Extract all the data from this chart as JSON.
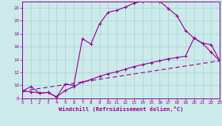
{
  "bg_color": "#cceaea",
  "grid_color": "#aad4d4",
  "line_color": "#990099",
  "xlabel": "Windchill (Refroidissement éolien,°C)",
  "xlim": [
    0,
    23
  ],
  "ylim": [
    8,
    23
  ],
  "xticks": [
    0,
    1,
    2,
    3,
    4,
    5,
    6,
    7,
    8,
    9,
    10,
    11,
    12,
    13,
    14,
    15,
    16,
    17,
    18,
    19,
    20,
    21,
    22,
    23
  ],
  "yticks": [
    8,
    10,
    12,
    14,
    16,
    18,
    20,
    22
  ],
  "line1_x": [
    0,
    1,
    2,
    3,
    4,
    5,
    6,
    7,
    8,
    9,
    10,
    11,
    12,
    13,
    14,
    15,
    16,
    17,
    18,
    19,
    20,
    21,
    22,
    23
  ],
  "line1_y": [
    9.1,
    9.8,
    8.8,
    8.9,
    8.2,
    10.2,
    10.0,
    17.2,
    16.4,
    19.5,
    21.3,
    21.6,
    22.1,
    22.7,
    23.0,
    23.1,
    23.0,
    21.9,
    20.8,
    18.5,
    17.3,
    16.5,
    15.1,
    13.8
  ],
  "line2_x": [
    0,
    1,
    2,
    3,
    4,
    5,
    6,
    7,
    8,
    9,
    10,
    11,
    12,
    13,
    14,
    15,
    16,
    17,
    18,
    19,
    20,
    21,
    22,
    23
  ],
  "line2_y": [
    9.1,
    9.0,
    8.8,
    8.9,
    8.2,
    9.2,
    9.8,
    10.5,
    10.9,
    11.4,
    11.8,
    12.1,
    12.5,
    12.9,
    13.2,
    13.5,
    13.8,
    14.1,
    14.3,
    14.5,
    17.3,
    16.5,
    16.3,
    13.8
  ],
  "line3_x": [
    0,
    23
  ],
  "line3_y": [
    9.1,
    13.8
  ]
}
